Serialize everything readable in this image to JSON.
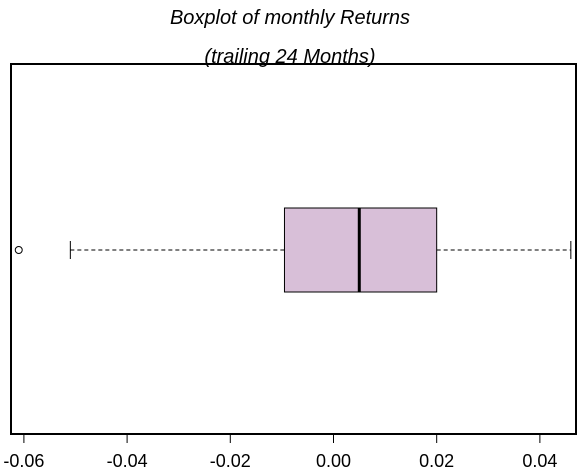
{
  "chart_data": {
    "type": "boxplot",
    "orientation": "horizontal",
    "title": [
      "Boxplot of monthly Returns",
      "(trailing 24 Months)"
    ],
    "xlabel": "",
    "ylabel": "",
    "xlim": [
      -0.0625,
      0.047
    ],
    "x_ticks": [
      -0.06,
      -0.04,
      -0.02,
      0.0,
      0.02,
      0.04
    ],
    "x_tick_labels": [
      "-0.06",
      "-0.04",
      "-0.02",
      "0.00",
      "0.02",
      "0.04"
    ],
    "series": [
      {
        "whisker_low": -0.051,
        "q1": -0.0095,
        "median": 0.005,
        "q3": 0.02,
        "whisker_high": 0.046,
        "outliers": [
          -0.061
        ],
        "box_color": "#d8bfd8"
      }
    ],
    "grid": false,
    "legend": "none"
  }
}
